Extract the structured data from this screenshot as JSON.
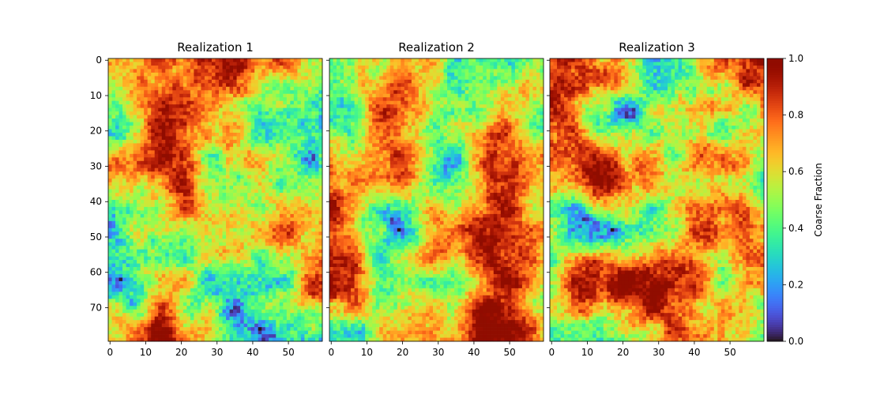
{
  "chart_data": [
    {
      "type": "heatmap",
      "title": "Realization 1",
      "rows": 80,
      "cols": 60,
      "xticks": [
        0,
        10,
        20,
        30,
        40,
        50
      ],
      "yticks": [
        0,
        10,
        20,
        30,
        40,
        50,
        60,
        70
      ],
      "value_range": [
        0,
        1
      ],
      "seed": 1
    },
    {
      "type": "heatmap",
      "title": "Realization 2",
      "rows": 80,
      "cols": 60,
      "xticks": [
        0,
        10,
        20,
        30,
        40,
        50
      ],
      "yticks": [
        0,
        10,
        20,
        30,
        40,
        50,
        60,
        70
      ],
      "value_range": [
        0,
        1
      ],
      "seed": 2
    },
    {
      "type": "heatmap",
      "title": "Realization 3",
      "rows": 80,
      "cols": 60,
      "xticks": [
        0,
        10,
        20,
        30,
        40,
        50
      ],
      "yticks": [
        0,
        10,
        20,
        30,
        40,
        50,
        60,
        70
      ],
      "value_range": [
        0,
        1
      ],
      "seed": 3
    }
  ],
  "colorbar": {
    "label": "Coarse Fraction",
    "ticks": [
      "0.0",
      "0.2",
      "0.4",
      "0.6",
      "0.8",
      "1.0"
    ],
    "colormap": "turbo"
  }
}
